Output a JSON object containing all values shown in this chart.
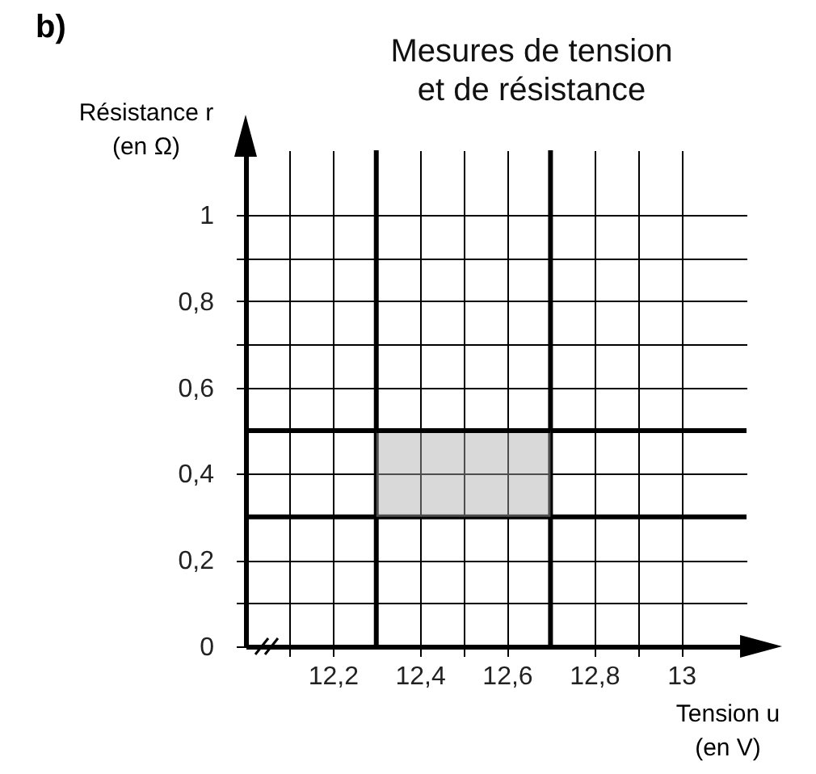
{
  "chart_data": {
    "type": "line",
    "title": "Mesures de tension\net de résistance",
    "xlabel": "Tension u\n(en V)",
    "ylabel": "Résistance r\n(en Ω)",
    "annotations": [
      "b)"
    ],
    "xlim": [
      12.0,
      13.15
    ],
    "ylim": [
      0,
      1.15
    ],
    "xticks": [
      {
        "value": 12.1,
        "label": null
      },
      {
        "value": 12.2,
        "label": "12,2"
      },
      {
        "value": 12.4,
        "label": "12,4"
      },
      {
        "value": 12.5,
        "label": null
      },
      {
        "value": 12.6,
        "label": "12,6"
      },
      {
        "value": 12.8,
        "label": "12,8"
      },
      {
        "value": 12.9,
        "label": null
      },
      {
        "value": 13,
        "label": "13"
      }
    ],
    "yticks": [
      {
        "value": 0,
        "label": "0"
      },
      {
        "value": 0.1,
        "label": null
      },
      {
        "value": 0.2,
        "label": "0,2"
      },
      {
        "value": 0.4,
        "label": "0,4"
      },
      {
        "value": 0.6,
        "label": "0,6"
      },
      {
        "value": 0.7,
        "label": null
      },
      {
        "value": 0.8,
        "label": "0,8"
      },
      {
        "value": 0.9,
        "label": null
      },
      {
        "value": 1,
        "label": "1"
      }
    ],
    "grid": true,
    "series": [
      {
        "type": "line",
        "color": "#000000",
        "x": [
          12.3,
          12.7
        ],
        "values": [
          0.5,
          0.5
        ],
        "lower": [
          0.3,
          0.3
        ],
        "upper": [
          0.5,
          0.5
        ]
      }
    ],
    "ref_lines": [
      {
        "axis": "x",
        "value": 12.3,
        "label": null,
        "color": "#000000"
      },
      {
        "axis": "x",
        "value": 12.7,
        "label": null,
        "color": "#000000"
      },
      {
        "axis": "y",
        "value": 0.3,
        "label": null,
        "color": "#000000"
      },
      {
        "axis": "y",
        "value": 0.5,
        "label": null,
        "color": "#000000"
      }
    ]
  }
}
